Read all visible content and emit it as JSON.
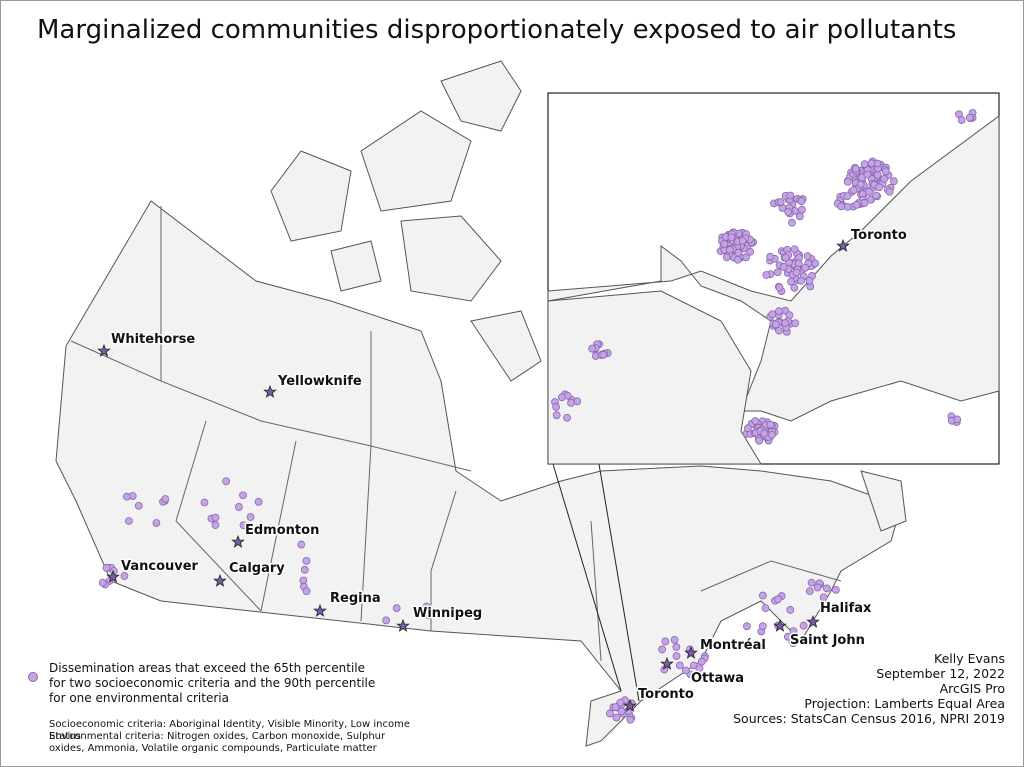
{
  "title": "Marginalized communities disproportionately exposed to air pollutants",
  "cities": [
    "Whitehorse",
    "Yellowknife",
    "Edmonton",
    "Calgary",
    "Vancouver",
    "Regina",
    "Winnipeg",
    "Ottawa",
    "Montréal",
    "Toronto",
    "Halifax",
    "Saint John"
  ],
  "inset": {
    "cities": [
      "Toronto"
    ]
  },
  "legend": {
    "label": "Dissemination areas that exceed the 65th percentile for two socioeconomic criteria and the 90th percentile for one environmental criteria"
  },
  "criteria": {
    "socioeconomic": "Socioeconomic criteria: Aboriginal Identity, Visible Minority, Low income Status",
    "environmental": "Environmental criteria: Nitrogen oxides, Carbon monoxide, Sulphur oxides, Ammonia, Volatile organic compounds, Particulate matter"
  },
  "credits": [
    "Kelly Evans",
    "September 12, 2022",
    "ArcGIS Pro",
    "Projection: Lamberts Equal Area",
    "Sources: StatsCan Census 2016, NPRI 2019"
  ]
}
